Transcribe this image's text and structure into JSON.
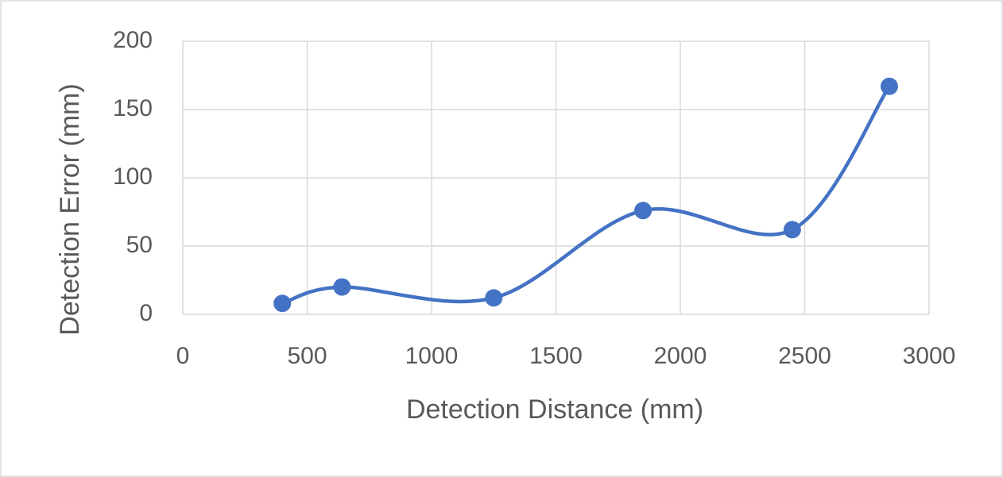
{
  "chart_data": {
    "type": "scatter",
    "smooth": true,
    "markers": true,
    "x_label": "Detection Distance (mm)",
    "y_label": "Detection Error (mm)",
    "x": [
      400,
      640,
      1250,
      1850,
      2450,
      2840
    ],
    "values": [
      8,
      20,
      12,
      76,
      62,
      167
    ],
    "color": "#4472c4",
    "xlim": [
      0,
      3000
    ],
    "xticks": [
      0,
      500,
      1000,
      1500,
      2000,
      2500,
      3000
    ],
    "ylim": [
      0,
      200
    ],
    "yticks": [
      0,
      50,
      100,
      150,
      200
    ],
    "grid": true
  }
}
